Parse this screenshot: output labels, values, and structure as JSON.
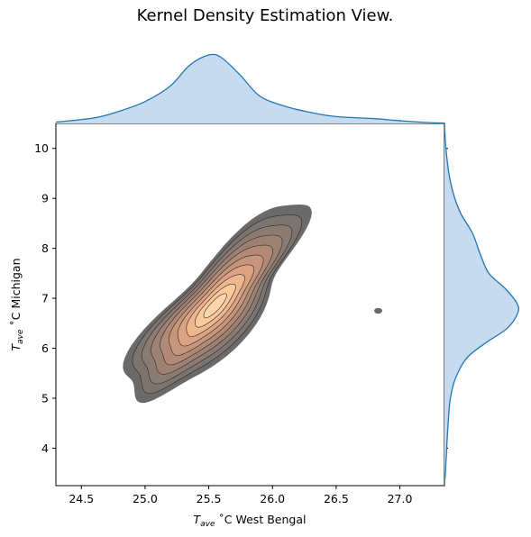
{
  "chart_data": {
    "type": "kde",
    "title": "Kernel Density Estimation View.",
    "xlabel": {
      "main": "T",
      "sub": "ave",
      "rest": " ˚C West Bengal"
    },
    "ylabel": {
      "main": "T",
      "sub": "ave",
      "rest": " ˚C Michigan"
    },
    "xlim": [
      24.3,
      27.35
    ],
    "ylim": [
      3.25,
      10.5
    ],
    "xticks": [
      24.5,
      25.0,
      25.5,
      26.0,
      26.5,
      27.0
    ],
    "xtick_labels": [
      "24.5",
      "25.0",
      "25.5",
      "26.0",
      "26.5",
      "27.0"
    ],
    "yticks": [
      4,
      5,
      6,
      7,
      8,
      9,
      10
    ],
    "ytick_labels": [
      "4",
      "5",
      "6",
      "7",
      "8",
      "9",
      "10"
    ],
    "joint_kde": {
      "peak": [
        25.55,
        6.85
      ],
      "contour_levels": 9,
      "colormap": [
        "#6b6a69",
        "#7c746f",
        "#8c7b72",
        "#9d8172",
        "#b28a76",
        "#c6957c",
        "#dba383",
        "#f0b68e",
        "#ffc99e",
        "#ffd6ab"
      ],
      "outlier_blob": [
        26.83,
        6.75
      ]
    },
    "marginal_x": {
      "x": [
        24.3,
        24.6,
        24.8,
        25.0,
        25.2,
        25.35,
        25.5,
        25.6,
        25.75,
        25.9,
        26.1,
        26.3,
        26.5,
        26.8,
        27.0,
        27.2,
        27.35
      ],
      "density": [
        0.02,
        0.08,
        0.18,
        0.32,
        0.55,
        0.85,
        1.0,
        0.96,
        0.7,
        0.4,
        0.25,
        0.16,
        0.1,
        0.07,
        0.04,
        0.015,
        0.005
      ],
      "color": "#1f77b4",
      "fill": "#c6dbef"
    },
    "marginal_y": {
      "y": [
        3.4,
        4.0,
        4.5,
        5.0,
        5.4,
        5.8,
        6.1,
        6.4,
        6.7,
        6.9,
        7.2,
        7.5,
        7.9,
        8.3,
        8.7,
        9.1,
        9.5,
        10.0,
        10.35
      ],
      "density": [
        0.01,
        0.03,
        0.05,
        0.08,
        0.15,
        0.3,
        0.55,
        0.85,
        0.99,
        0.98,
        0.82,
        0.6,
        0.48,
        0.38,
        0.22,
        0.12,
        0.06,
        0.02,
        0.005
      ],
      "color": "#1f77b4",
      "fill": "#c6dbef"
    }
  }
}
